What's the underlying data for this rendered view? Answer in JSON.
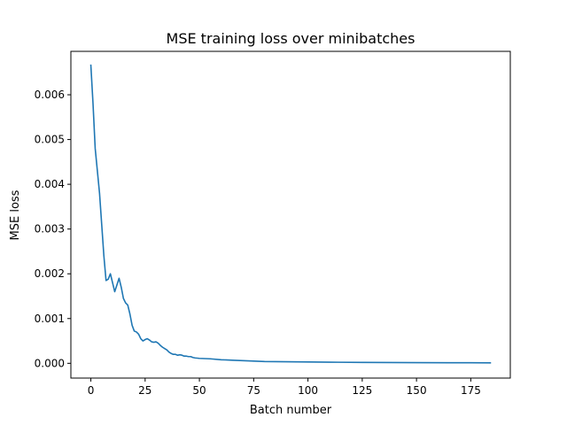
{
  "chart_data": {
    "type": "line",
    "title": "MSE training loss over minibatches",
    "xlabel": "Batch number",
    "ylabel": "MSE loss",
    "xlim": [
      -9.2,
      193.2
    ],
    "ylim": [
      -0.00033,
      0.00697
    ],
    "x_ticks": [
      0,
      25,
      50,
      75,
      100,
      125,
      150,
      175
    ],
    "x_tick_labels": [
      "0",
      "25",
      "50",
      "75",
      "100",
      "125",
      "150",
      "175"
    ],
    "y_ticks": [
      0.0,
      0.001,
      0.002,
      0.003,
      0.004,
      0.005,
      0.006
    ],
    "y_tick_labels": [
      "0.000",
      "0.001",
      "0.002",
      "0.003",
      "0.004",
      "0.005",
      "0.006"
    ],
    "grid": false,
    "legend": "none",
    "series": [
      {
        "color": "#1f77b4",
        "points": [
          [
            0,
            0.00666
          ],
          [
            1,
            0.0058
          ],
          [
            2,
            0.0048
          ],
          [
            3,
            0.0043
          ],
          [
            4,
            0.0038
          ],
          [
            5,
            0.0031
          ],
          [
            6,
            0.0024
          ],
          [
            7,
            0.00185
          ],
          [
            8,
            0.00188
          ],
          [
            9,
            0.002
          ],
          [
            10,
            0.0018
          ],
          [
            11,
            0.0016
          ],
          [
            12,
            0.00175
          ],
          [
            13,
            0.0019
          ],
          [
            14,
            0.0017
          ],
          [
            15,
            0.00145
          ],
          [
            16,
            0.00135
          ],
          [
            17,
            0.0013
          ],
          [
            18,
            0.0011
          ],
          [
            19,
            0.00085
          ],
          [
            20,
            0.00072
          ],
          [
            21,
            0.0007
          ],
          [
            22,
            0.00065
          ],
          [
            23,
            0.00055
          ],
          [
            24,
            0.0005
          ],
          [
            25,
            0.00053
          ],
          [
            26,
            0.00055
          ],
          [
            27,
            0.00052
          ],
          [
            28,
            0.00048
          ],
          [
            29,
            0.00047
          ],
          [
            30,
            0.00048
          ],
          [
            31,
            0.00045
          ],
          [
            32,
            0.0004
          ],
          [
            33,
            0.00036
          ],
          [
            34,
            0.00033
          ],
          [
            35,
            0.0003
          ],
          [
            36,
            0.00025
          ],
          [
            37,
            0.00022
          ],
          [
            38,
            0.0002
          ],
          [
            39,
            0.0002
          ],
          [
            40,
            0.00018
          ],
          [
            41,
            0.00019
          ],
          [
            42,
            0.00018
          ],
          [
            43,
            0.00016
          ],
          [
            44,
            0.00016
          ],
          [
            45,
            0.00015
          ],
          [
            46,
            0.00015
          ],
          [
            47,
            0.00013
          ],
          [
            48,
            0.00012
          ],
          [
            50,
            0.00011
          ],
          [
            55,
            0.0001
          ],
          [
            60,
            8e-05
          ],
          [
            65,
            7e-05
          ],
          [
            70,
            6e-05
          ],
          [
            75,
            5e-05
          ],
          [
            80,
            4e-05
          ],
          [
            90,
            3.5e-05
          ],
          [
            100,
            3e-05
          ],
          [
            110,
            2.5e-05
          ],
          [
            125,
            2e-05
          ],
          [
            150,
            1.5e-05
          ],
          [
            175,
            1.2e-05
          ],
          [
            184,
            1e-05
          ]
        ]
      }
    ]
  }
}
